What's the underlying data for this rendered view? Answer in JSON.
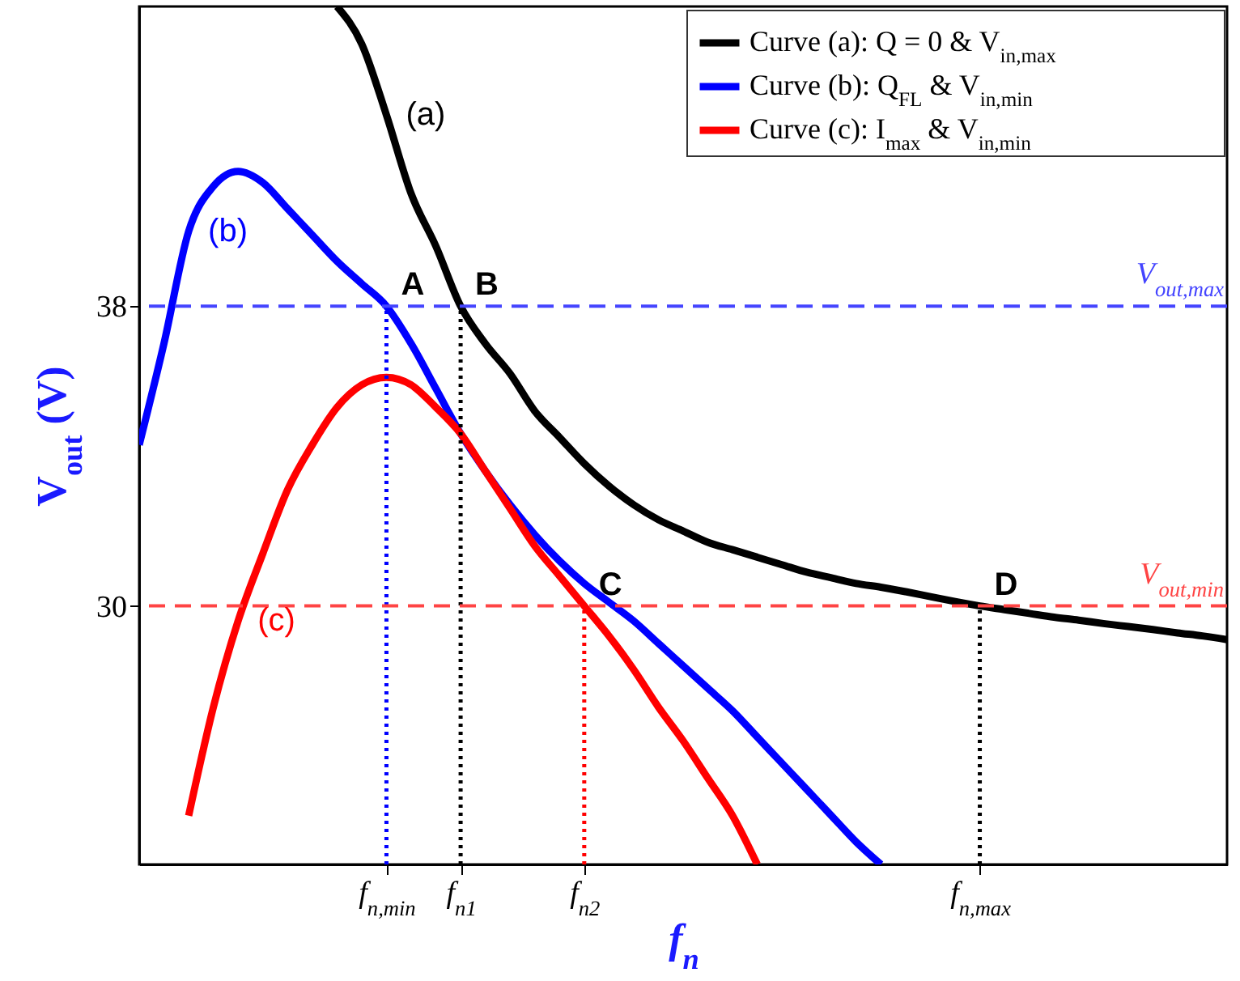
{
  "chart_data": {
    "type": "line",
    "xlabel": "f$_{n}$",
    "ylabel": "V$_{out}$ (V)",
    "ylim": [
      23.1,
      46
    ],
    "yticks": [
      30,
      38
    ],
    "categories": [
      null,
      null,
      null,
      null,
      null,
      null,
      null,
      null,
      null,
      null,
      "f$_{n,min}$",
      null,
      null,
      "f$_{n1}$",
      null,
      null,
      null,
      null,
      "f$_{n2}$",
      null,
      null,
      null,
      null,
      null,
      null,
      null,
      null,
      null,
      null,
      null,
      null,
      null,
      null,
      null,
      "f$_{n,max}$",
      null,
      null,
      null,
      null,
      null,
      null,
      null,
      null,
      null,
      null
    ],
    "legend": "top right",
    "series": [
      {
        "name": "Curve (a): Q = 0 & V$_{in,max}$",
        "color": "#000000",
        "values": [
          null,
          null,
          null,
          null,
          null,
          null,
          null,
          null,
          46,
          45.0,
          43.1,
          41.0,
          39.6,
          38.0,
          37.0,
          36.2,
          35.2,
          34.5,
          33.8,
          33.2,
          32.7,
          32.3,
          32.0,
          31.7,
          31.5,
          31.3,
          31.1,
          30.9,
          30.75,
          30.6,
          30.5,
          30.38,
          30.25,
          30.12,
          30.0,
          29.9,
          29.8,
          29.7,
          29.62,
          29.53,
          29.45,
          29.37,
          29.28,
          29.2,
          29.1
        ]
      },
      {
        "name": "Curve (b): Q$_{FL}$ & V$_{in,min}$",
        "color": "#0000ff",
        "values": [
          34.3,
          37.0,
          40.0,
          41.2,
          41.6,
          41.3,
          40.6,
          39.9,
          39.2,
          38.6,
          38.0,
          37.0,
          35.8,
          34.6,
          33.6,
          32.7,
          31.9,
          31.2,
          30.6,
          30.1,
          29.6,
          29.0,
          28.4,
          27.8,
          27.2,
          26.5,
          25.8,
          25.1,
          24.4,
          23.7,
          23.1,
          null,
          null,
          null,
          null,
          null,
          null,
          null,
          null,
          null,
          null,
          null,
          null,
          null,
          null
        ]
      },
      {
        "name": "Curve (c): I$_{max}$ & V$_{in,min}$",
        "color": "#ff0000",
        "values": [
          null,
          null,
          24.4,
          27.3,
          29.6,
          31.4,
          33.1,
          34.3,
          35.3,
          35.9,
          36.1,
          35.9,
          35.3,
          34.6,
          33.6,
          32.6,
          31.6,
          30.8,
          30.0,
          29.2,
          28.3,
          27.3,
          26.4,
          25.4,
          24.4,
          23.1,
          null,
          null,
          null,
          null,
          null,
          null,
          null,
          null,
          null,
          null,
          null,
          null,
          null,
          null,
          null,
          null,
          null,
          null,
          null
        ]
      },
      {
        "color": "#0000ff",
        "line_style": "dotted",
        "x": [
          "f$_{n,min}$",
          "f$_{n,min}$"
        ],
        "values": [
          23.1,
          38
        ]
      },
      {
        "color": "#000000",
        "line_style": "dotted",
        "x": [
          "f$_{n1}$",
          "f$_{n1}$"
        ],
        "values": [
          23.1,
          38
        ]
      },
      {
        "color": "#ff0000",
        "line_style": "dotted",
        "x": [
          "f$_{n2}$",
          "f$_{n2}$"
        ],
        "values": [
          23.1,
          30
        ]
      },
      {
        "color": "#000000",
        "line_style": "dotted",
        "x": [
          "f$_{n,max}$",
          "f$_{n,max}$"
        ],
        "values": [
          23.1,
          30
        ]
      }
    ],
    "ref_lines": [
      {
        "axis": "y",
        "value": 38,
        "label": "V$_{out,max}$",
        "color": "#4444ff",
        "line_style": "dashed"
      },
      {
        "axis": "y",
        "value": 30,
        "label": "V$_{out,min}$",
        "color": "#ff4444",
        "line_style": "dashed"
      }
    ],
    "annotations": [
      "(a)",
      "(b)",
      "(c)",
      {
        "text": "A",
        "x": "f$_{n,min}$",
        "y": 38
      },
      {
        "text": "B",
        "x": "f$_{n1}$",
        "y": 38
      },
      {
        "text": "C",
        "x": "f$_{n2}$",
        "y": 30
      },
      {
        "text": "D",
        "x": "f$_{n,max}$",
        "y": 30
      }
    ]
  }
}
